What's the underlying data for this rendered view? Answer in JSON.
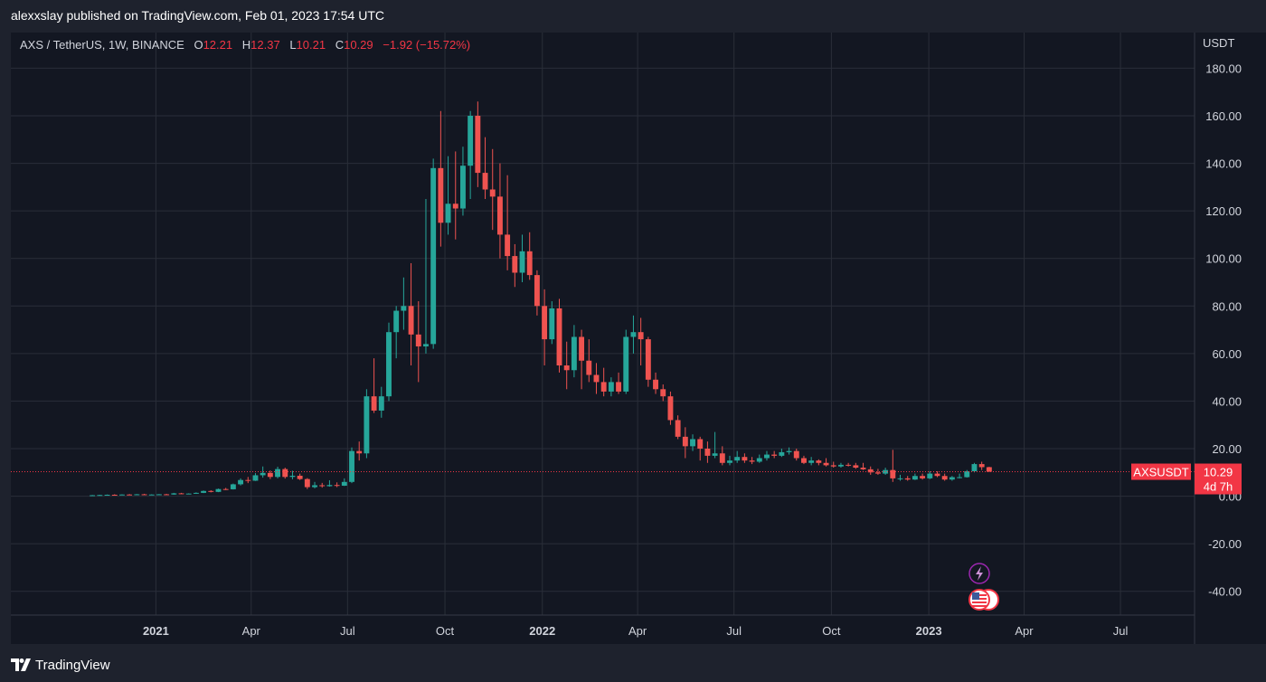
{
  "publish": {
    "text": "alexxslay published on TradingView.com, Feb 01, 2023 17:54 UTC"
  },
  "legend": {
    "symbol": "AXS / TetherUS, 1W, BINANCE",
    "o_label": "O",
    "o_value": "12.21",
    "h_label": "H",
    "h_value": "12.37",
    "l_label": "L",
    "l_value": "10.21",
    "c_label": "C",
    "c_value": "10.29",
    "change": "−1.92 (−15.72%)"
  },
  "price_axis": {
    "unit": "USDT",
    "last_symbol": "AXSUSDT",
    "last_price": "10.29",
    "countdown": "4d 7h"
  },
  "footer": {
    "brand": "TradingView",
    "logo_icon": "tradingview-logo-icon"
  },
  "event_icons": [
    "lightning-icon",
    "us-flag-icon"
  ],
  "colors": {
    "background": "#1e222d",
    "plot_background": "#131722",
    "up": "#26a69a",
    "down": "#ef5350",
    "grid": "#2a2e39",
    "price_line": "#f23645"
  },
  "chart_data": {
    "type": "candlestick",
    "title": "AXS / TetherUS, 1W, BINANCE",
    "ylabel": "USDT",
    "ylim": [
      -50,
      195
    ],
    "grid": true,
    "y_ticks": [
      "-40.00",
      "-20.00",
      "0.00",
      "20.00",
      "40.00",
      "60.00",
      "80.00",
      "100.00",
      "120.00",
      "140.00",
      "160.00",
      "180.00"
    ],
    "x_ticks": [
      {
        "label": "2021",
        "date": "2021-01-01",
        "bold": true
      },
      {
        "label": "Apr",
        "date": "2021-04-01",
        "bold": false
      },
      {
        "label": "Jul",
        "date": "2021-07-01",
        "bold": false
      },
      {
        "label": "Oct",
        "date": "2021-10-01",
        "bold": false
      },
      {
        "label": "2022",
        "date": "2022-01-01",
        "bold": true
      },
      {
        "label": "Apr",
        "date": "2022-04-01",
        "bold": false
      },
      {
        "label": "Jul",
        "date": "2022-07-01",
        "bold": false
      },
      {
        "label": "Oct",
        "date": "2022-10-01",
        "bold": false
      },
      {
        "label": "2023",
        "date": "2023-01-01",
        "bold": true
      },
      {
        "label": "Apr",
        "date": "2023-04-01",
        "bold": false
      },
      {
        "label": "Jul",
        "date": "2023-07-01",
        "bold": false
      }
    ],
    "x_range": [
      "2020-08-17",
      "2023-09-09"
    ],
    "first_candle_date": "2020-11-02",
    "interval_days": 7,
    "last_price": 10.29,
    "candles": [
      [
        0.3,
        0.5,
        0.2,
        0.4
      ],
      [
        0.4,
        0.6,
        0.3,
        0.5
      ],
      [
        0.5,
        0.7,
        0.4,
        0.6
      ],
      [
        0.6,
        0.8,
        0.4,
        0.5
      ],
      [
        0.5,
        0.8,
        0.4,
        0.7
      ],
      [
        0.7,
        0.9,
        0.5,
        0.6
      ],
      [
        0.6,
        0.9,
        0.5,
        0.8
      ],
      [
        0.8,
        1.0,
        0.5,
        0.6
      ],
      [
        0.6,
        0.8,
        0.5,
        0.7
      ],
      [
        0.7,
        0.9,
        0.6,
        0.8
      ],
      [
        0.8,
        1.0,
        0.6,
        0.7
      ],
      [
        0.7,
        1.4,
        0.6,
        1.2
      ],
      [
        1.2,
        1.4,
        0.9,
        1.0
      ],
      [
        1.0,
        1.2,
        0.8,
        1.1
      ],
      [
        1.1,
        1.6,
        1.0,
        1.4
      ],
      [
        1.4,
        2.4,
        1.3,
        2.2
      ],
      [
        2.2,
        2.5,
        1.6,
        1.8
      ],
      [
        1.8,
        3.2,
        1.7,
        3.0
      ],
      [
        3.0,
        3.5,
        2.6,
        2.9
      ],
      [
        2.9,
        5.3,
        2.8,
        5.0
      ],
      [
        5.0,
        7.5,
        4.5,
        6.8
      ],
      [
        6.8,
        8.1,
        5.5,
        6.5
      ],
      [
        6.5,
        9.7,
        6.4,
        8.8
      ],
      [
        8.8,
        12.5,
        7.8,
        9.8
      ],
      [
        9.8,
        10.8,
        7.2,
        8.1
      ],
      [
        8.1,
        12.4,
        7.5,
        11.4
      ],
      [
        11.4,
        12.0,
        7.4,
        8.1
      ],
      [
        8.1,
        10.7,
        7.1,
        8.6
      ],
      [
        8.6,
        9.5,
        6.8,
        7.2
      ],
      [
        7.2,
        7.6,
        3.0,
        3.8
      ],
      [
        3.8,
        6.0,
        3.3,
        4.6
      ],
      [
        4.6,
        5.6,
        3.6,
        4.2
      ],
      [
        4.2,
        6.7,
        4.0,
        4.7
      ],
      [
        4.7,
        5.8,
        3.8,
        4.4
      ],
      [
        4.4,
        7.5,
        4.3,
        6.0
      ],
      [
        6.0,
        20.5,
        5.5,
        19.0
      ],
      [
        19.0,
        23.0,
        15.0,
        18.0
      ],
      [
        18.0,
        45.0,
        16.0,
        42.0
      ],
      [
        42.0,
        58.0,
        35.0,
        36.0
      ],
      [
        36.0,
        46.0,
        33.0,
        42.0
      ],
      [
        42.0,
        73.0,
        40.0,
        69.0
      ],
      [
        69.0,
        80.0,
        58.0,
        78.0
      ],
      [
        78.0,
        92.0,
        70.0,
        80.0
      ],
      [
        80.0,
        98.0,
        55.0,
        68.0
      ],
      [
        68.0,
        82.0,
        48.0,
        63.0
      ],
      [
        63.0,
        125.0,
        60.0,
        64.0
      ],
      [
        64.0,
        142.0,
        62.0,
        138.0
      ],
      [
        138.0,
        162.0,
        105.0,
        115.0
      ],
      [
        115.0,
        143.0,
        110.0,
        123.0
      ],
      [
        123.0,
        145.0,
        108.0,
        121.0
      ],
      [
        121.0,
        147.0,
        118.0,
        139.0
      ],
      [
        139.0,
        162.0,
        125.0,
        160.0
      ],
      [
        160.0,
        166.0,
        130.0,
        136.0
      ],
      [
        136.0,
        151.0,
        125.0,
        129.0
      ],
      [
        129.0,
        146.0,
        112.0,
        126.0
      ],
      [
        126.0,
        140.0,
        100.0,
        110.0
      ],
      [
        110.0,
        135.0,
        95.0,
        101.0
      ],
      [
        101.0,
        106.0,
        88.0,
        94.0
      ],
      [
        94.0,
        110.0,
        90.0,
        103.0
      ],
      [
        103.0,
        111.0,
        91.0,
        93.0
      ],
      [
        93.0,
        95.0,
        76.0,
        80.0
      ],
      [
        80.0,
        87.0,
        55.0,
        66.0
      ],
      [
        66.0,
        82.0,
        64.0,
        79.0
      ],
      [
        79.0,
        83.0,
        52.0,
        55.0
      ],
      [
        55.0,
        65.0,
        45.0,
        53.0
      ],
      [
        53.0,
        72.0,
        50.0,
        67.0
      ],
      [
        67.0,
        70.0,
        45.0,
        57.0
      ],
      [
        57.0,
        66.0,
        48.0,
        51.0
      ],
      [
        51.0,
        56.0,
        43.0,
        48.0
      ],
      [
        48.0,
        54.0,
        42.0,
        44.0
      ],
      [
        44.0,
        50.0,
        42.0,
        48.0
      ],
      [
        48.0,
        52.0,
        43.0,
        44.0
      ],
      [
        44.0,
        70.0,
        43.0,
        67.0
      ],
      [
        67.0,
        76.0,
        60.0,
        69.0
      ],
      [
        69.0,
        75.0,
        55.0,
        66.0
      ],
      [
        66.0,
        67.0,
        46.0,
        49.0
      ],
      [
        49.0,
        52.0,
        43.0,
        45.0
      ],
      [
        45.0,
        47.0,
        40.0,
        42.0
      ],
      [
        42.0,
        44.0,
        30.0,
        32.0
      ],
      [
        32.0,
        34.0,
        24.0,
        25.0
      ],
      [
        25.0,
        29.0,
        16.0,
        21.0
      ],
      [
        21.0,
        26.0,
        19.0,
        24.0
      ],
      [
        24.0,
        25.0,
        15.0,
        20.0
      ],
      [
        20.0,
        23.0,
        14.0,
        17.0
      ],
      [
        17.0,
        27.0,
        16.0,
        18.0
      ],
      [
        18.0,
        21.0,
        13.0,
        14.0
      ],
      [
        14.0,
        17.0,
        13.0,
        15.0
      ],
      [
        15.0,
        19.0,
        14.0,
        16.5
      ],
      [
        16.5,
        18.0,
        14.0,
        15.0
      ],
      [
        15.0,
        16.5,
        13.5,
        14.5
      ],
      [
        14.5,
        17.5,
        14.0,
        16.0
      ],
      [
        16.0,
        19.0,
        15.0,
        17.5
      ],
      [
        17.5,
        19.0,
        16.0,
        17.0
      ],
      [
        17.0,
        20.0,
        16.5,
        18.5
      ],
      [
        18.5,
        20.5,
        17.5,
        19.0
      ],
      [
        19.0,
        20.0,
        15.0,
        16.0
      ],
      [
        16.0,
        17.0,
        13.5,
        14.0
      ],
      [
        14.0,
        16.5,
        13.0,
        15.0
      ],
      [
        15.0,
        15.5,
        13.0,
        14.0
      ],
      [
        14.0,
        16.0,
        12.5,
        13.0
      ],
      [
        13.0,
        14.5,
        12.0,
        12.5
      ],
      [
        12.5,
        14.0,
        12.0,
        13.2
      ],
      [
        13.2,
        14.0,
        12.5,
        13.0
      ],
      [
        13.0,
        14.0,
        11.5,
        12.0
      ],
      [
        12.0,
        14.0,
        11.0,
        11.3
      ],
      [
        11.3,
        12.5,
        9.0,
        10.0
      ],
      [
        10.0,
        11.5,
        9.0,
        9.5
      ],
      [
        9.5,
        12.0,
        9.0,
        11.0
      ],
      [
        11.0,
        19.5,
        6.0,
        7.5
      ],
      [
        7.5,
        9.0,
        6.5,
        7.5
      ],
      [
        7.5,
        8.5,
        6.5,
        7.0
      ],
      [
        7.0,
        9.5,
        6.8,
        8.5
      ],
      [
        8.5,
        9.5,
        7.0,
        7.5
      ],
      [
        7.5,
        10.5,
        7.2,
        9.5
      ],
      [
        9.5,
        10.5,
        8.0,
        8.5
      ],
      [
        8.5,
        9.5,
        6.5,
        7.0
      ],
      [
        7.0,
        8.5,
        6.5,
        8.0
      ],
      [
        8.0,
        9.5,
        7.5,
        8.0
      ],
      [
        8.0,
        11.0,
        7.8,
        10.5
      ],
      [
        10.5,
        14.0,
        10.0,
        13.5
      ],
      [
        13.5,
        14.5,
        11.0,
        12.21
      ],
      [
        12.21,
        12.37,
        10.21,
        10.29
      ]
    ]
  }
}
